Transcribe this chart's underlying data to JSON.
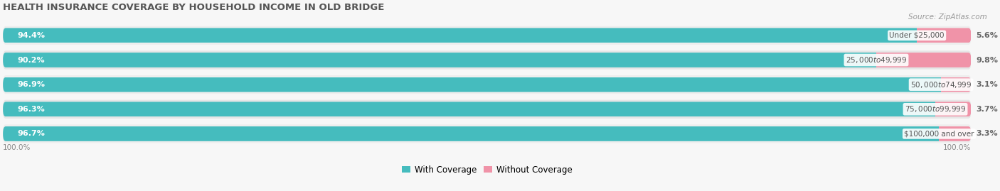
{
  "title": "HEALTH INSURANCE COVERAGE BY HOUSEHOLD INCOME IN OLD BRIDGE",
  "source": "Source: ZipAtlas.com",
  "categories": [
    "Under $25,000",
    "$25,000 to $49,999",
    "$50,000 to $74,999",
    "$75,000 to $99,999",
    "$100,000 and over"
  ],
  "with_coverage": [
    94.4,
    90.2,
    96.9,
    96.3,
    96.7
  ],
  "without_coverage": [
    5.6,
    9.8,
    3.1,
    3.7,
    3.3
  ],
  "color_with": "#45BCBE",
  "color_without": "#F093A8",
  "row_bg_odd": "#EEEEEE",
  "row_bg_even": "#E6E6E6",
  "fig_bg": "#F7F7F7",
  "title_color": "#555555",
  "source_color": "#999999",
  "footer_color": "#888888",
  "label_left_color": "#FFFFFF",
  "label_right_color": "#666666",
  "cat_label_color": "#555555",
  "legend_with": "With Coverage",
  "legend_without": "Without Coverage",
  "figsize": [
    14.06,
    2.69
  ],
  "dpi": 100
}
